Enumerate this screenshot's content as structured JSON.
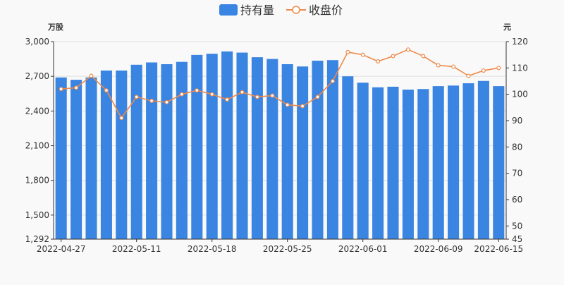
{
  "legend": {
    "bar_label": "持有量",
    "line_label": "收盘价"
  },
  "colors": {
    "bar": "#3a84e2",
    "line": "#ef8a4a",
    "axis_text": "#333333",
    "grid": "#e0e0e0",
    "background": "#f9f9f9"
  },
  "chart_data": {
    "type": "bar",
    "left_unit": "万股",
    "right_unit": "元",
    "left_ylim": [
      1292,
      3000
    ],
    "left_ticks": [
      "1,292",
      "1,500",
      "1,800",
      "2,100",
      "2,400",
      "2,700",
      "3,000"
    ],
    "left_tick_values": [
      1292,
      1500,
      1800,
      2100,
      2400,
      2700,
      3000
    ],
    "right_ylim": [
      45,
      120
    ],
    "right_ticks": [
      "45",
      "50",
      "60",
      "70",
      "80",
      "90",
      "100",
      "110",
      "120"
    ],
    "right_tick_values": [
      45,
      50,
      60,
      70,
      80,
      90,
      100,
      110,
      120
    ],
    "x_tick_labels": [
      {
        "index": 0,
        "label": "2022-04-27"
      },
      {
        "index": 5,
        "label": "2022-05-11"
      },
      {
        "index": 10,
        "label": "2022-05-18"
      },
      {
        "index": 15,
        "label": "2022-05-25"
      },
      {
        "index": 20,
        "label": "2022-06-01"
      },
      {
        "index": 25,
        "label": "2022-06-09"
      },
      {
        "index": 29,
        "label": "2022-06-15"
      }
    ],
    "series": [
      {
        "name": "持有量",
        "type": "bar",
        "axis": "left",
        "values": [
          2690,
          2670,
          2690,
          2750,
          2750,
          2800,
          2820,
          2805,
          2825,
          2885,
          2895,
          2915,
          2905,
          2865,
          2850,
          2805,
          2785,
          2835,
          2840,
          2700,
          2645,
          2605,
          2610,
          2585,
          2590,
          2615,
          2620,
          2640,
          2660,
          2615
        ]
      },
      {
        "name": "收盘价",
        "type": "line",
        "axis": "right",
        "values": [
          102.0,
          102.5,
          107.0,
          101.5,
          91.0,
          99.0,
          97.5,
          97.0,
          100.0,
          101.5,
          100.0,
          98.0,
          100.8,
          99.0,
          99.5,
          96.0,
          95.5,
          99.0,
          105.0,
          116.0,
          115.0,
          112.5,
          114.5,
          117.0,
          114.5,
          111.0,
          110.5,
          107.0,
          109.0,
          110.0
        ]
      }
    ]
  }
}
